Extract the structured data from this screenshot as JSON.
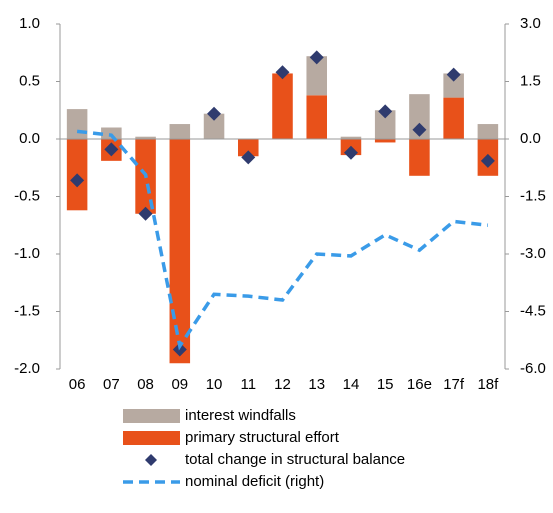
{
  "chart_data": {
    "type": "bar",
    "categories": [
      "06",
      "07",
      "08",
      "09",
      "10",
      "11",
      "12",
      "13",
      "14",
      "15",
      "16e",
      "17f",
      "18f"
    ],
    "series": [
      {
        "name": "interest windfalls",
        "type": "bar",
        "color": "#b7aaa1",
        "values": [
          0.26,
          0.1,
          0.02,
          0.13,
          0.22,
          0.0,
          0.0,
          0.34,
          0.02,
          0.25,
          0.39,
          0.21,
          0.13
        ]
      },
      {
        "name": "primary structural effort",
        "type": "bar",
        "color": "#e8511a",
        "values": [
          -0.62,
          -0.19,
          -0.65,
          -1.95,
          0.0,
          -0.15,
          0.57,
          0.38,
          -0.14,
          -0.03,
          -0.32,
          0.36,
          -0.32
        ]
      },
      {
        "name": "total change in structural balance",
        "type": "marker",
        "color": "#2f3b6e",
        "values": [
          -0.36,
          -0.09,
          -0.65,
          -1.83,
          0.22,
          -0.16,
          0.58,
          0.71,
          -0.12,
          0.24,
          0.08,
          0.56,
          -0.19
        ]
      },
      {
        "name": "nominal deficit (right)",
        "type": "line",
        "axis": "y2",
        "color": "#3a9be8",
        "values": [
          0.2,
          0.1,
          -0.93,
          -5.4,
          -4.05,
          -4.1,
          -4.2,
          -3.0,
          -3.05,
          -2.5,
          -2.9,
          -2.15,
          -2.25
        ]
      }
    ],
    "ylim": [
      -2.0,
      1.0
    ],
    "yticks": [
      {
        "value": -2.0,
        "label": "-2.0"
      },
      {
        "value": -1.5,
        "label": "-1.5"
      },
      {
        "value": -1.0,
        "label": "-1.0"
      },
      {
        "value": -0.5,
        "label": "-0.5"
      },
      {
        "value": 0.0,
        "label": "0.0"
      },
      0.5,
      {
        "value": 1.0,
        "label": "1.0"
      }
    ],
    "y2lim": [
      -6.0,
      3.0
    ],
    "y2ticks": [
      {
        "value": -6.0,
        "label": "-6.0"
      },
      -4.5,
      {
        "value": -3.0,
        "label": "-3.0"
      },
      -1.5,
      {
        "value": 0.0,
        "label": "0.0"
      },
      1.5,
      {
        "value": 3.0,
        "label": "3.0"
      }
    ]
  }
}
